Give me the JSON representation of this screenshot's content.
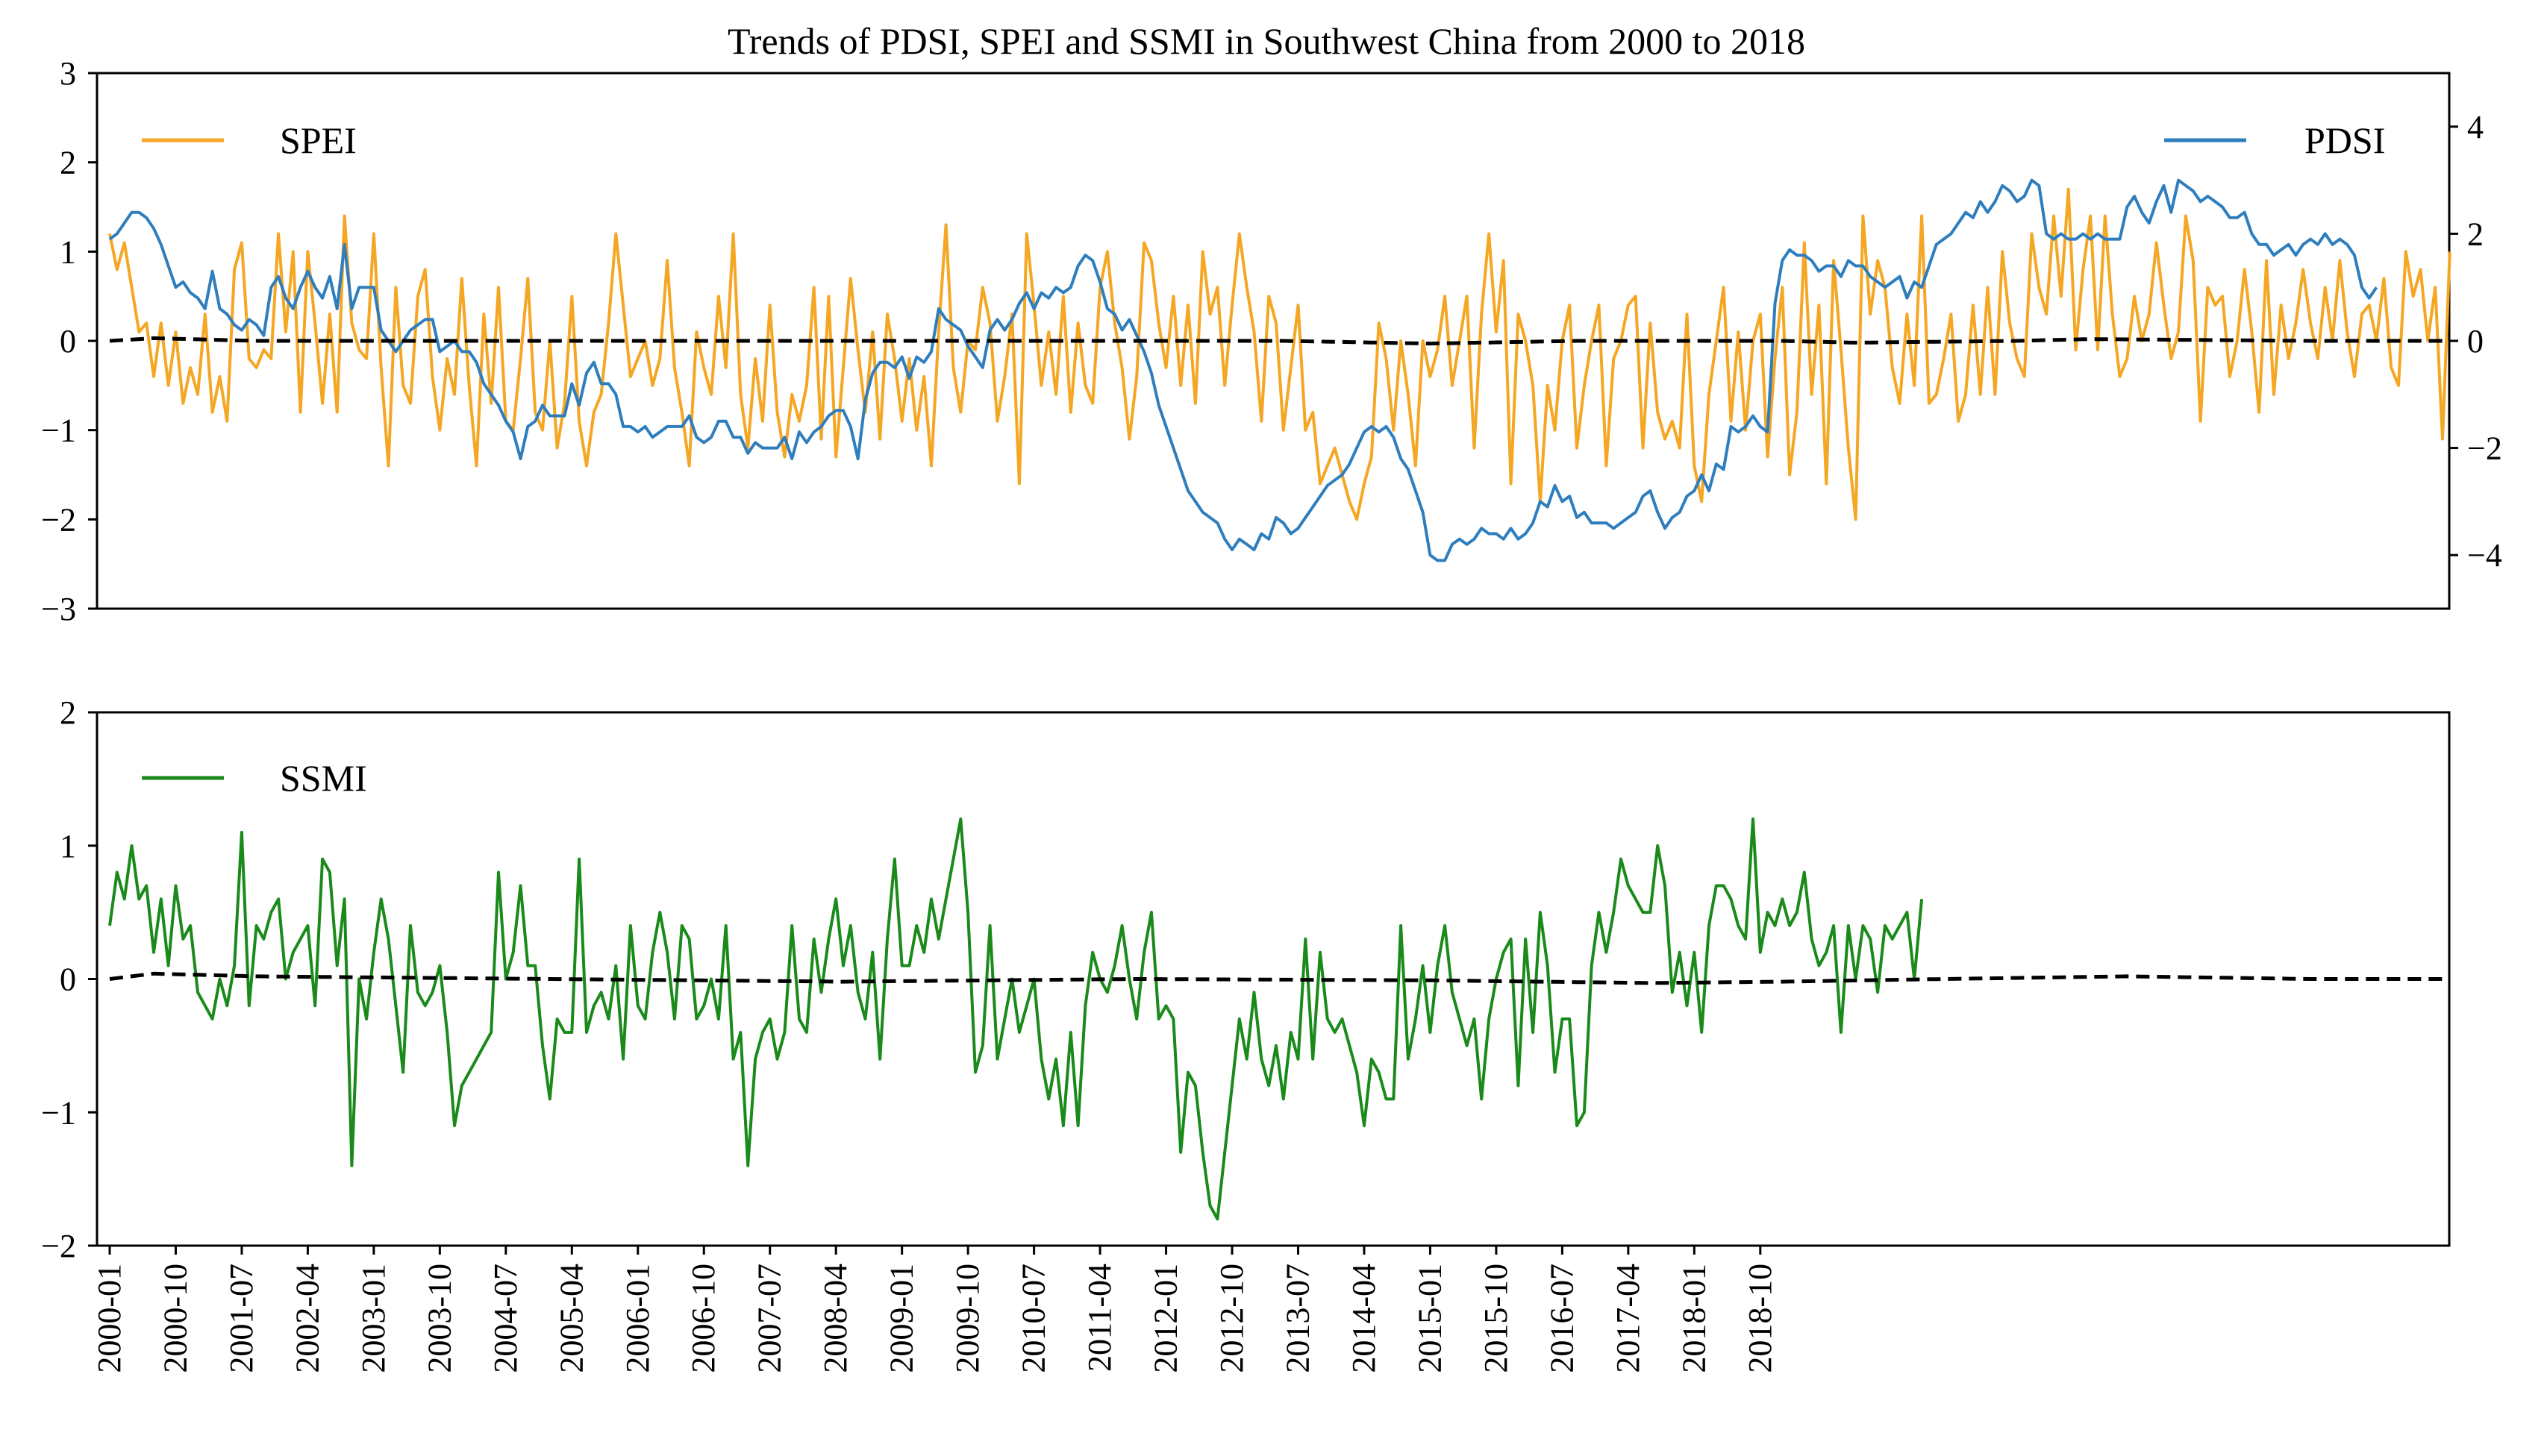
{
  "chart_data": [
    {
      "type": "line",
      "title": "Trends of PDSI, SPEI and SSMI in Southwest China from 2000 to 2018",
      "xlabel": "",
      "ylabel": "",
      "ylim": [
        -3,
        3
      ],
      "y_ticks": [
        "−3",
        "−2",
        "−1",
        "0",
        "1",
        "2",
        "3"
      ],
      "y2lim": [
        -5,
        5
      ],
      "y2_ticks": [
        "−4",
        "−2",
        "0",
        "2",
        "4"
      ],
      "legend": [
        {
          "label": "SPEI",
          "position": "top-left"
        },
        {
          "label": "PDSI",
          "position": "top-right"
        }
      ],
      "series": [
        {
          "name": "SPEI",
          "axis": "left",
          "color": "#F5A623",
          "x_start": "2000-01",
          "step": "month",
          "values": [
            1.2,
            0.8,
            1.1,
            0.6,
            0.1,
            0.2,
            -0.4,
            0.2,
            -0.5,
            0.1,
            -0.7,
            -0.3,
            -0.6,
            0.3,
            -0.8,
            -0.4,
            -0.9,
            0.8,
            1.1,
            -0.2,
            -0.3,
            -0.1,
            -0.2,
            1.2,
            0.1,
            1.0,
            -0.8,
            1.0,
            0.2,
            -0.7,
            0.3,
            -0.8,
            1.4,
            0.2,
            -0.1,
            -0.2,
            1.2,
            -0.3,
            -1.4,
            0.6,
            -0.5,
            -0.7,
            0.5,
            0.8,
            -0.4,
            -1.0,
            -0.2,
            -0.6,
            0.7,
            -0.5,
            -1.4,
            0.3,
            -0.7,
            0.6,
            -0.9,
            -1.0,
            -0.2,
            0.7,
            -0.8,
            -1.0,
            0.0,
            -1.2,
            -0.7,
            0.5,
            -0.9,
            -1.4,
            -0.8,
            -0.6,
            0.2,
            1.2,
            0.4,
            -0.4,
            -0.2,
            0.0,
            -0.5,
            -0.2,
            0.9,
            -0.3,
            -0.8,
            -1.4,
            0.1,
            -0.3,
            -0.6,
            0.5,
            -0.3,
            1.2,
            -0.6,
            -1.2,
            -0.2,
            -0.9,
            0.4,
            -0.8,
            -1.3,
            -0.6,
            -0.9,
            -0.5,
            0.6,
            -1.1,
            0.5,
            -1.3,
            -0.3,
            0.7,
            -0.1,
            -0.8,
            0.1,
            -1.1,
            0.3,
            -0.2,
            -0.9,
            -0.2,
            -1.0,
            -0.4,
            -1.4,
            0.1,
            1.3,
            -0.3,
            -0.8,
            0.0,
            -0.1,
            0.6,
            0.2,
            -0.9,
            -0.4,
            0.3,
            -1.6,
            1.2,
            0.4,
            -0.5,
            0.1,
            -0.6,
            0.5,
            -0.8,
            0.2,
            -0.5,
            -0.7,
            0.6,
            1.0,
            0.2,
            -0.3,
            -1.1,
            -0.4,
            1.1,
            0.9,
            0.2,
            -0.3,
            0.5,
            -0.5,
            0.4,
            -0.7,
            1.0,
            0.3,
            0.6,
            -0.5,
            0.4,
            1.2,
            0.6,
            0.1,
            -0.9,
            0.5,
            0.2,
            -1.0,
            -0.3,
            0.4,
            -1.0,
            -0.8,
            -1.6,
            -1.4,
            -1.2,
            -1.5,
            -1.8,
            -2.0,
            -1.6,
            -1.3,
            0.2,
            -0.2,
            -1.0,
            0.0,
            -0.6,
            -1.4,
            0.0,
            -0.4,
            -0.1,
            0.5,
            -0.5,
            0.0,
            0.5,
            -1.2,
            0.3,
            1.2,
            0.1,
            0.9,
            -1.6,
            0.3,
            0.0,
            -0.5,
            -1.8,
            -0.5,
            -1.0,
            0.0,
            0.4,
            -1.2,
            -0.5,
            0.0,
            0.4,
            -1.4,
            -0.2,
            0.0,
            0.4,
            0.5,
            -1.2,
            0.2,
            -0.8,
            -1.1,
            -0.9,
            -1.2,
            0.3,
            -1.4,
            -1.8,
            -0.6,
            0.0,
            0.6,
            -0.9,
            0.1,
            -1.0,
            0.0,
            0.3,
            -1.3,
            -0.2,
            0.6,
            -1.5,
            -0.8,
            1.1,
            -0.6,
            0.4,
            -1.6,
            0.9,
            -0.1,
            -1.2,
            -2.0,
            1.4,
            0.3,
            0.9,
            0.6,
            -0.3,
            -0.7,
            0.3,
            -0.5,
            1.4,
            -0.7,
            -0.6,
            -0.2,
            0.3,
            -0.9,
            -0.6,
            0.4,
            -0.6,
            0.6,
            -0.6,
            1.0,
            0.2,
            -0.2,
            -0.4,
            1.2,
            0.6,
            0.3,
            1.4,
            0.5,
            1.7,
            -0.1,
            0.8,
            1.4,
            -0.1,
            1.4,
            0.3,
            -0.4,
            -0.2,
            0.5,
            0.0,
            0.3,
            1.1,
            0.4,
            -0.2,
            0.1,
            1.4,
            0.9,
            -0.9,
            0.6,
            0.4,
            0.5,
            -0.4,
            0.0,
            0.8,
            0.1,
            -0.8,
            0.9,
            -0.6,
            0.4,
            -0.2,
            0.2,
            0.8,
            0.2,
            -0.2,
            0.6,
            0.0,
            0.9,
            0.1,
            -0.4,
            0.3,
            0.4,
            0.0,
            0.7,
            -0.3,
            -0.5,
            1.0,
            0.5,
            0.8,
            0.0,
            0.6,
            -1.1,
            1.0
          ]
        },
        {
          "name": "PDSI",
          "axis": "right",
          "color": "#2E7EBE",
          "x_start": "2000-01",
          "step": "month",
          "values": [
            1.9,
            2.0,
            2.2,
            2.4,
            2.4,
            2.3,
            2.1,
            1.8,
            1.4,
            1.0,
            1.1,
            0.9,
            0.8,
            0.6,
            1.3,
            0.6,
            0.5,
            0.3,
            0.2,
            0.4,
            0.3,
            0.1,
            1.0,
            1.2,
            0.8,
            0.6,
            1.0,
            1.3,
            1.0,
            0.8,
            1.2,
            0.6,
            1.8,
            0.6,
            1.0,
            1.0,
            1.0,
            0.2,
            0.0,
            -0.2,
            0.0,
            0.2,
            0.3,
            0.4,
            0.4,
            -0.2,
            -0.1,
            0.0,
            -0.2,
            -0.2,
            -0.4,
            -0.8,
            -1.0,
            -1.2,
            -1.5,
            -1.7,
            -2.2,
            -1.6,
            -1.5,
            -1.2,
            -1.4,
            -1.4,
            -1.4,
            -0.8,
            -1.2,
            -0.6,
            -0.4,
            -0.8,
            -0.8,
            -1.0,
            -1.6,
            -1.6,
            -1.7,
            -1.6,
            -1.8,
            -1.7,
            -1.6,
            -1.6,
            -1.6,
            -1.4,
            -1.8,
            -1.9,
            -1.8,
            -1.5,
            -1.5,
            -1.8,
            -1.8,
            -2.1,
            -1.9,
            -2.0,
            -2.0,
            -2.0,
            -1.8,
            -2.2,
            -1.7,
            -1.9,
            -1.7,
            -1.6,
            -1.4,
            -1.3,
            -1.3,
            -1.6,
            -2.2,
            -1.1,
            -0.6,
            -0.4,
            -0.4,
            -0.5,
            -0.3,
            -0.7,
            -0.3,
            -0.4,
            -0.2,
            0.6,
            0.4,
            0.3,
            0.2,
            -0.1,
            -0.3,
            -0.5,
            0.2,
            0.4,
            0.2,
            0.4,
            0.7,
            0.9,
            0.6,
            0.9,
            0.8,
            1.0,
            0.9,
            1.0,
            1.4,
            1.6,
            1.5,
            1.1,
            0.6,
            0.5,
            0.2,
            0.4,
            0.1,
            -0.2,
            -0.6,
            -1.2,
            -1.6,
            -2.0,
            -2.4,
            -2.8,
            -3.0,
            -3.2,
            -3.3,
            -3.4,
            -3.7,
            -3.9,
            -3.7,
            -3.8,
            -3.9,
            -3.6,
            -3.7,
            -3.3,
            -3.4,
            -3.6,
            -3.5,
            -3.3,
            -3.1,
            -2.9,
            -2.7,
            -2.6,
            -2.5,
            -2.3,
            -2.0,
            -1.7,
            -1.6,
            -1.7,
            -1.6,
            -1.8,
            -2.2,
            -2.4,
            -2.8,
            -3.2,
            -4.0,
            -4.1,
            -4.1,
            -3.8,
            -3.7,
            -3.8,
            -3.7,
            -3.5,
            -3.6,
            -3.6,
            -3.7,
            -3.5,
            -3.7,
            -3.6,
            -3.4,
            -3.0,
            -3.1,
            -2.7,
            -3.0,
            -2.9,
            -3.3,
            -3.2,
            -3.4,
            -3.4,
            -3.4,
            -3.5,
            -3.4,
            -3.3,
            -3.2,
            -2.9,
            -2.8,
            -3.2,
            -3.5,
            -3.3,
            -3.2,
            -2.9,
            -2.8,
            -2.5,
            -2.8,
            -2.3,
            -2.4,
            -1.6,
            -1.7,
            -1.6,
            -1.4,
            -1.6,
            -1.7,
            0.7,
            1.5,
            1.7,
            1.6,
            1.6,
            1.5,
            1.3,
            1.4,
            1.4,
            1.2,
            1.5,
            1.4,
            1.4,
            1.2,
            1.1,
            1.0,
            1.1,
            1.2,
            0.8,
            1.1,
            1.0,
            1.4,
            1.8,
            1.9,
            2.0,
            2.2,
            2.4,
            2.3,
            2.6,
            2.4,
            2.6,
            2.9,
            2.8,
            2.6,
            2.7,
            3.0,
            2.9,
            2.0,
            1.9,
            2.0,
            1.9,
            1.9,
            2.0,
            1.9,
            2.0,
            1.9,
            1.9,
            1.9,
            2.5,
            2.7,
            2.4,
            2.2,
            2.6,
            2.9,
            2.4,
            3.0,
            2.9,
            2.8,
            2.6,
            2.7,
            2.6,
            2.5,
            2.3,
            2.3,
            2.4,
            2.0,
            1.8,
            1.8,
            1.6,
            1.7,
            1.8,
            1.6,
            1.8,
            1.9,
            1.8,
            2.0,
            1.8,
            1.9,
            1.8,
            1.6,
            1.0,
            0.8,
            1.0
          ]
        },
        {
          "name": "SPEI trend",
          "axis": "left",
          "color": "#000000",
          "style": "dashed",
          "x_start": "2000-01",
          "step": "month",
          "knots": [
            [
              0,
              0.0
            ],
            [
              6,
              0.03
            ],
            [
              20,
              0.0
            ],
            [
              120,
              0.0
            ],
            [
              160,
              0.0
            ],
            [
              180,
              -0.03
            ],
            [
              200,
              0.0
            ],
            [
              228,
              0.0
            ],
            [
              238,
              -0.02
            ],
            [
              260,
              0.0
            ],
            [
              270,
              0.02
            ],
            [
              300,
              0.0
            ],
            [
              318,
              0.0
            ]
          ]
        }
      ]
    },
    {
      "type": "line",
      "title": "",
      "xlabel": "",
      "ylabel": "",
      "ylim": [
        -2,
        2
      ],
      "y_ticks": [
        "−2",
        "−1",
        "0",
        "1",
        "2"
      ],
      "legend": [
        {
          "label": "SSMI",
          "position": "top-left"
        }
      ],
      "x_tick_labels": [
        "2000-01",
        "2000-10",
        "2001-07",
        "2002-04",
        "2003-01",
        "2003-10",
        "2004-07",
        "2005-04",
        "2006-01",
        "2006-10",
        "2007-07",
        "2008-04",
        "2009-01",
        "2009-10",
        "2010-07",
        "2011-04",
        "2012-01",
        "2012-10",
        "2013-07",
        "2014-04",
        "2015-01",
        "2015-10",
        "2016-07",
        "2017-04",
        "2018-01",
        "2018-10"
      ],
      "series": [
        {
          "name": "SSMI",
          "color": "#1A8A1A",
          "x_start": "2000-01",
          "step": "month",
          "values": [
            0.4,
            0.8,
            0.6,
            1.0,
            0.6,
            0.7,
            0.2,
            0.6,
            0.1,
            0.7,
            0.3,
            0.4,
            -0.1,
            -0.2,
            -0.3,
            0.0,
            -0.2,
            0.1,
            1.1,
            -0.2,
            0.4,
            0.3,
            0.5,
            0.6,
            0.0,
            0.2,
            0.3,
            0.4,
            -0.2,
            0.9,
            0.8,
            0.1,
            0.6,
            -1.4,
            0.0,
            -0.3,
            0.2,
            0.6,
            0.3,
            -0.2,
            -0.7,
            0.4,
            -0.1,
            -0.2,
            -0.1,
            0.1,
            -0.4,
            -1.1,
            -0.8,
            -0.7,
            -0.6,
            -0.5,
            -0.4,
            0.8,
            0.0,
            0.2,
            0.7,
            0.1,
            0.1,
            -0.5,
            -0.9,
            -0.3,
            -0.4,
            -0.4,
            0.9,
            -0.4,
            -0.2,
            -0.1,
            -0.3,
            0.1,
            -0.6,
            0.4,
            -0.2,
            -0.3,
            0.2,
            0.5,
            0.2,
            -0.3,
            0.4,
            0.3,
            -0.3,
            -0.2,
            0.0,
            -0.3,
            0.4,
            -0.6,
            -0.4,
            -1.4,
            -0.6,
            -0.4,
            -0.3,
            -0.6,
            -0.4,
            0.4,
            -0.3,
            -0.4,
            0.3,
            -0.1,
            0.3,
            0.6,
            0.1,
            0.4,
            -0.1,
            -0.3,
            0.2,
            -0.6,
            0.3,
            0.9,
            0.1,
            0.1,
            0.4,
            0.2,
            0.6,
            0.3,
            0.6,
            0.9,
            1.2,
            0.5,
            -0.7,
            -0.5,
            0.4,
            -0.6,
            -0.3,
            0.0,
            -0.4,
            -0.2,
            0.0,
            -0.6,
            -0.9,
            -0.6,
            -1.1,
            -0.4,
            -1.1,
            -0.2,
            0.2,
            0.0,
            -0.1,
            0.1,
            0.4,
            0.0,
            -0.3,
            0.2,
            0.5,
            -0.3,
            -0.2,
            -0.3,
            -1.3,
            -0.7,
            -0.8,
            -1.3,
            -1.7,
            -1.8,
            -1.3,
            -0.8,
            -0.3,
            -0.6,
            -0.1,
            -0.6,
            -0.8,
            -0.5,
            -0.9,
            -0.4,
            -0.6,
            0.3,
            -0.6,
            0.2,
            -0.3,
            -0.4,
            -0.3,
            -0.5,
            -0.7,
            -1.1,
            -0.6,
            -0.7,
            -0.9,
            -0.9,
            0.4,
            -0.6,
            -0.3,
            0.1,
            -0.4,
            0.1,
            0.4,
            -0.1,
            -0.3,
            -0.5,
            -0.3,
            -0.9,
            -0.3,
            0.0,
            0.2,
            0.3,
            -0.8,
            0.3,
            -0.4,
            0.5,
            0.1,
            -0.7,
            -0.3,
            -0.3,
            -1.1,
            -1.0,
            0.1,
            0.5,
            0.2,
            0.5,
            0.9,
            0.7,
            0.6,
            0.5,
            0.5,
            1.0,
            0.7,
            -0.1,
            0.2,
            -0.2,
            0.2,
            -0.4,
            0.4,
            0.7,
            0.7,
            0.6,
            0.4,
            0.3,
            1.2,
            0.2,
            0.5,
            0.4,
            0.6,
            0.4,
            0.5,
            0.8,
            0.3,
            0.1,
            0.2,
            0.4,
            -0.4,
            0.4,
            0.0,
            0.4,
            0.3,
            -0.1,
            0.4,
            0.3,
            0.4,
            0.5,
            0.0,
            0.6
          ]
        },
        {
          "name": "SSMI trend",
          "color": "#000000",
          "style": "dashed",
          "x_start": "2000-01",
          "step": "month",
          "knots": [
            [
              0,
              0.0
            ],
            [
              6,
              0.04
            ],
            [
              20,
              0.02
            ],
            [
              60,
              0.0
            ],
            [
              100,
              -0.02
            ],
            [
              140,
              0.0
            ],
            [
              180,
              -0.01
            ],
            [
              210,
              -0.03
            ],
            [
              228,
              -0.02
            ],
            [
              250,
              0.0
            ],
            [
              275,
              0.02
            ],
            [
              300,
              0.0
            ],
            [
              318,
              0.0
            ]
          ]
        }
      ]
    }
  ]
}
